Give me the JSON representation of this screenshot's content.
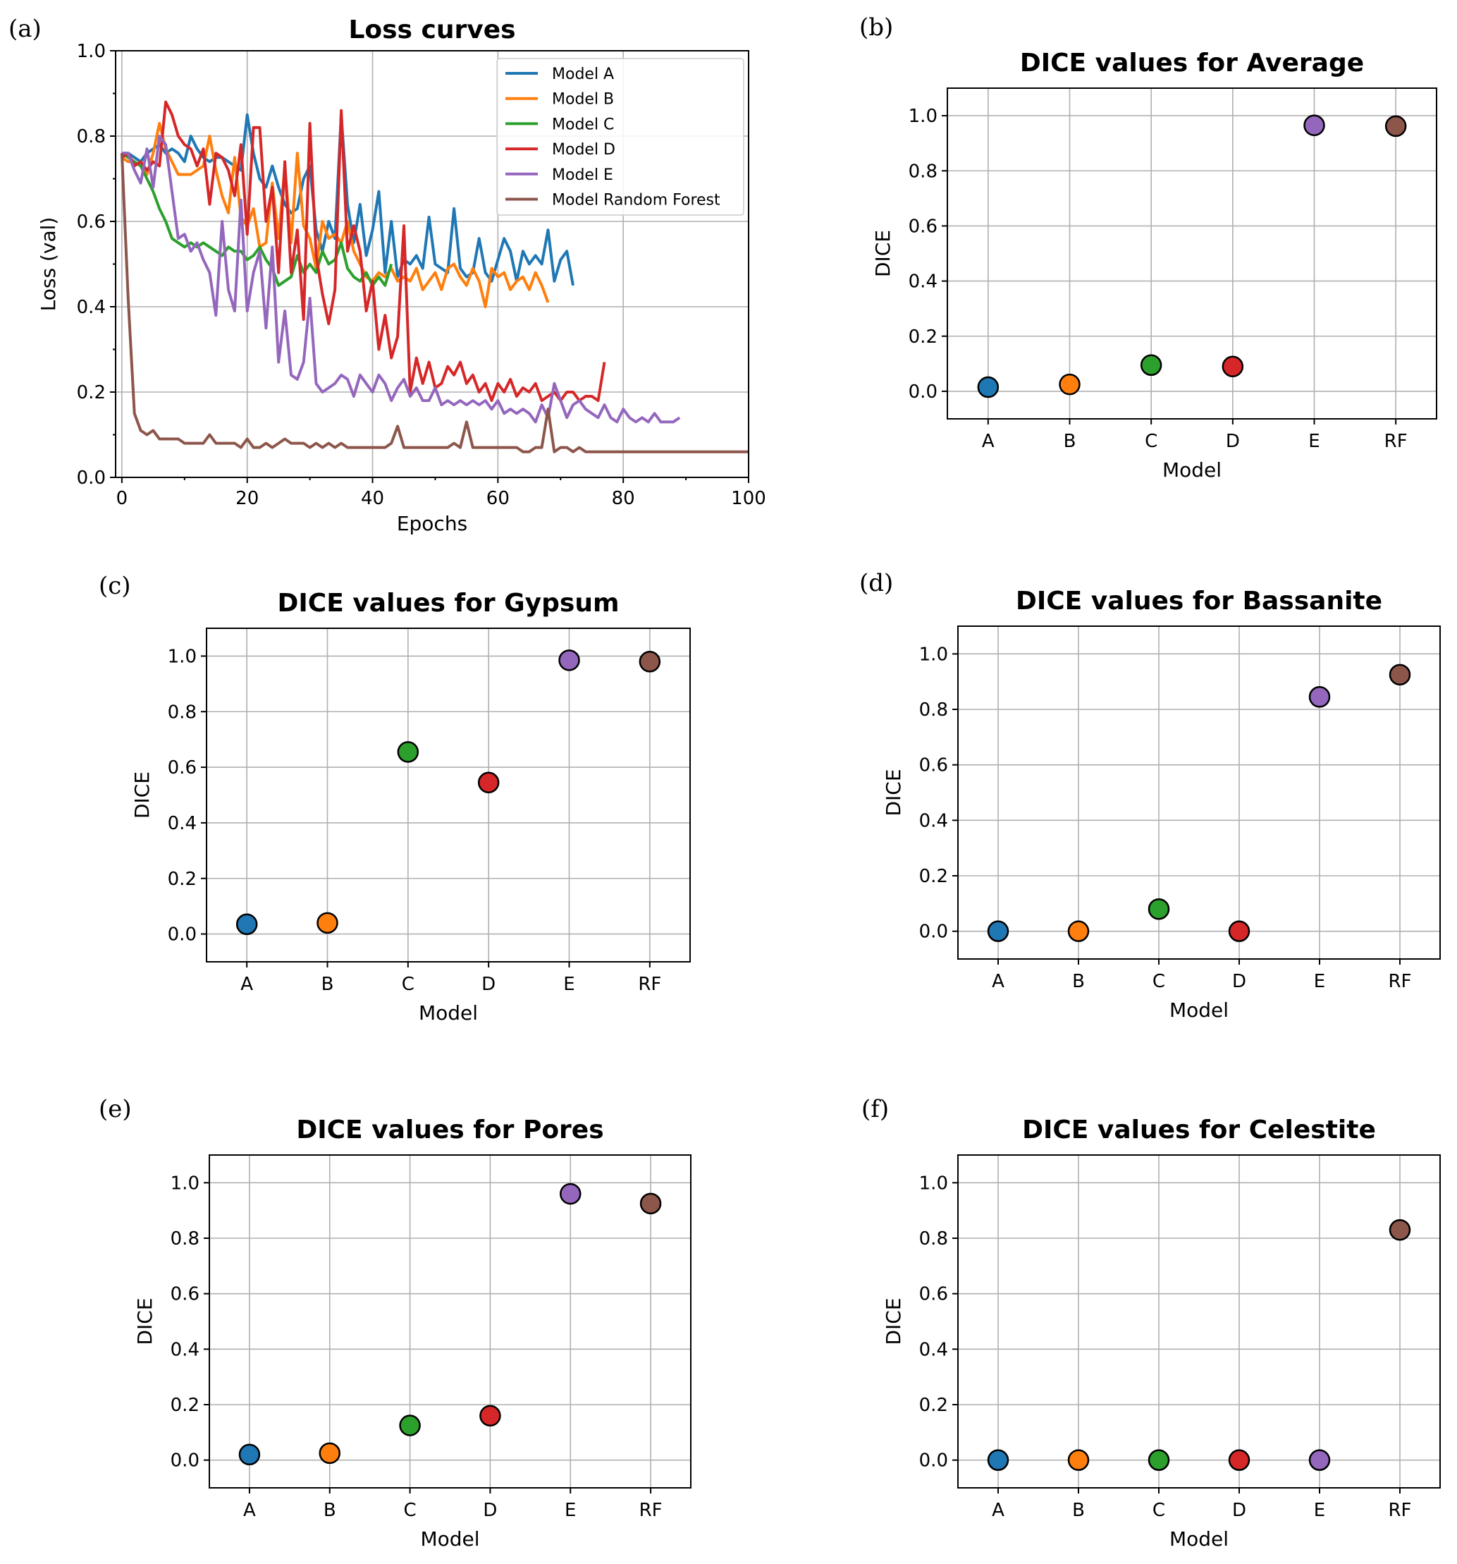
{
  "panel_labels": [
    "(a)",
    "(b)",
    "(c)",
    "(d)",
    "(e)",
    "(f)"
  ],
  "chart_data": [
    {
      "type": "line",
      "title": "Loss curves",
      "xlabel": "Epochs",
      "ylabel": "Loss (val)",
      "xlim": [
        -1,
        100
      ],
      "ylim": [
        0.0,
        1.0
      ],
      "xticks": [
        0,
        20,
        40,
        60,
        80,
        100
      ],
      "yticks": [
        0.0,
        0.2,
        0.4,
        0.6,
        0.8,
        1.0
      ],
      "grid": true,
      "legend_position": "top-right",
      "series": [
        {
          "name": "Model A",
          "color": "#1f77b4",
          "x_start": 0,
          "values": [
            0.76,
            0.76,
            0.75,
            0.74,
            0.76,
            0.77,
            0.78,
            0.76,
            0.77,
            0.76,
            0.74,
            0.8,
            0.77,
            0.75,
            0.74,
            0.75,
            0.75,
            0.74,
            0.73,
            0.72,
            0.85,
            0.76,
            0.7,
            0.68,
            0.73,
            0.68,
            0.64,
            0.62,
            0.63,
            0.7,
            0.73,
            0.58,
            0.53,
            0.6,
            0.56,
            0.85,
            0.64,
            0.55,
            0.64,
            0.52,
            0.58,
            0.67,
            0.48,
            0.6,
            0.47,
            0.51,
            0.5,
            0.52,
            0.49,
            0.61,
            0.5,
            0.49,
            0.48,
            0.63,
            0.49,
            0.47,
            0.48,
            0.56,
            0.48,
            0.46,
            0.51,
            0.56,
            0.53,
            0.46,
            0.53,
            0.5,
            0.52,
            0.5,
            0.58,
            0.46,
            0.51,
            0.53,
            0.45
          ]
        },
        {
          "name": "Model B",
          "color": "#ff7f0e",
          "x_start": 0,
          "values": [
            0.75,
            0.74,
            0.74,
            0.73,
            0.71,
            0.76,
            0.83,
            0.77,
            0.74,
            0.71,
            0.71,
            0.71,
            0.72,
            0.73,
            0.8,
            0.72,
            0.66,
            0.62,
            0.75,
            0.61,
            0.59,
            0.63,
            0.54,
            0.55,
            0.69,
            0.56,
            0.73,
            0.55,
            0.76,
            0.59,
            0.56,
            0.49,
            0.6,
            0.56,
            0.57,
            0.55,
            0.6,
            0.53,
            0.5,
            0.47,
            0.46,
            0.48,
            0.47,
            0.49,
            0.46,
            0.47,
            0.46,
            0.49,
            0.44,
            0.46,
            0.48,
            0.44,
            0.49,
            0.5,
            0.47,
            0.45,
            0.49,
            0.46,
            0.4,
            0.49,
            0.47,
            0.48,
            0.44,
            0.46,
            0.47,
            0.44,
            0.48,
            0.45,
            0.41
          ]
        },
        {
          "name": "Model C",
          "color": "#2ca02c",
          "x_start": 0,
          "values": [
            0.76,
            0.75,
            0.74,
            0.73,
            0.7,
            0.67,
            0.63,
            0.6,
            0.56,
            0.55,
            0.54,
            0.55,
            0.54,
            0.55,
            0.54,
            0.53,
            0.52,
            0.54,
            0.53,
            0.53,
            0.51,
            0.52,
            0.54,
            0.51,
            0.49,
            0.45,
            0.46,
            0.47,
            0.52,
            0.48,
            0.5,
            0.48,
            0.53,
            0.5,
            0.51,
            0.55,
            0.49,
            0.47,
            0.46,
            0.48,
            0.45,
            0.47,
            0.45,
            0.5
          ]
        },
        {
          "name": "Model D",
          "color": "#d62728",
          "x_start": 0,
          "values": [
            0.75,
            0.76,
            0.73,
            0.74,
            0.72,
            0.74,
            0.73,
            0.88,
            0.85,
            0.8,
            0.78,
            0.77,
            0.73,
            0.77,
            0.64,
            0.76,
            0.75,
            0.72,
            0.66,
            0.78,
            0.57,
            0.82,
            0.82,
            0.6,
            0.68,
            0.48,
            0.74,
            0.48,
            0.58,
            0.37,
            0.83,
            0.52,
            0.43,
            0.36,
            0.44,
            0.86,
            0.53,
            0.59,
            0.53,
            0.39,
            0.46,
            0.3,
            0.38,
            0.28,
            0.33,
            0.59,
            0.2,
            0.28,
            0.22,
            0.27,
            0.21,
            0.22,
            0.26,
            0.24,
            0.27,
            0.22,
            0.24,
            0.2,
            0.22,
            0.18,
            0.22,
            0.2,
            0.23,
            0.19,
            0.21,
            0.2,
            0.22,
            0.18,
            0.19,
            0.2,
            0.18,
            0.2,
            0.2,
            0.18,
            0.19,
            0.19,
            0.18,
            0.27
          ]
        },
        {
          "name": "Model E",
          "color": "#9467bd",
          "x_start": 0,
          "values": [
            0.76,
            0.76,
            0.72,
            0.69,
            0.77,
            0.68,
            0.8,
            0.78,
            0.67,
            0.56,
            0.57,
            0.53,
            0.55,
            0.51,
            0.48,
            0.38,
            0.6,
            0.44,
            0.39,
            0.65,
            0.39,
            0.48,
            0.53,
            0.35,
            0.54,
            0.27,
            0.39,
            0.24,
            0.23,
            0.27,
            0.42,
            0.22,
            0.2,
            0.21,
            0.22,
            0.24,
            0.23,
            0.19,
            0.24,
            0.22,
            0.2,
            0.24,
            0.22,
            0.18,
            0.21,
            0.23,
            0.19,
            0.21,
            0.18,
            0.18,
            0.21,
            0.17,
            0.18,
            0.17,
            0.18,
            0.17,
            0.18,
            0.17,
            0.18,
            0.16,
            0.18,
            0.15,
            0.16,
            0.15,
            0.16,
            0.15,
            0.13,
            0.17,
            0.14,
            0.22,
            0.18,
            0.14,
            0.17,
            0.18,
            0.16,
            0.15,
            0.14,
            0.17,
            0.14,
            0.13,
            0.16,
            0.14,
            0.13,
            0.14,
            0.13,
            0.15,
            0.13,
            0.13,
            0.13,
            0.14
          ]
        },
        {
          "name": "Model Random Forest",
          "color": "#8c564b",
          "x_start": 0,
          "values": [
            0.76,
            0.42,
            0.15,
            0.11,
            0.1,
            0.11,
            0.09,
            0.09,
            0.09,
            0.09,
            0.08,
            0.08,
            0.08,
            0.08,
            0.1,
            0.08,
            0.08,
            0.08,
            0.08,
            0.07,
            0.09,
            0.07,
            0.07,
            0.08,
            0.07,
            0.08,
            0.09,
            0.08,
            0.08,
            0.08,
            0.07,
            0.08,
            0.07,
            0.08,
            0.07,
            0.08,
            0.07,
            0.07,
            0.07,
            0.07,
            0.07,
            0.07,
            0.07,
            0.08,
            0.12,
            0.07,
            0.07,
            0.07,
            0.07,
            0.07,
            0.07,
            0.07,
            0.07,
            0.08,
            0.07,
            0.13,
            0.07,
            0.07,
            0.07,
            0.07,
            0.07,
            0.07,
            0.07,
            0.07,
            0.06,
            0.06,
            0.07,
            0.07,
            0.16,
            0.06,
            0.07,
            0.07,
            0.06,
            0.07,
            0.06,
            0.06,
            0.06,
            0.06,
            0.06,
            0.06,
            0.06,
            0.06,
            0.06,
            0.06,
            0.06,
            0.06,
            0.06,
            0.06,
            0.06,
            0.06,
            0.06,
            0.06,
            0.06,
            0.06,
            0.06,
            0.06,
            0.06,
            0.06,
            0.06,
            0.06,
            0.06
          ]
        }
      ]
    },
    {
      "type": "scatter",
      "title": "DICE values for Average",
      "xlabel": "Model",
      "ylabel": "DICE",
      "categories": [
        "A",
        "B",
        "C",
        "D",
        "E",
        "RF"
      ],
      "values": [
        0.015,
        0.025,
        0.095,
        0.09,
        0.965,
        0.962
      ],
      "ylim": [
        -0.1,
        1.1
      ],
      "yticks": [
        0.0,
        0.2,
        0.4,
        0.6,
        0.8,
        1.0
      ],
      "grid": true
    },
    {
      "type": "scatter",
      "title": "DICE values for Gypsum",
      "xlabel": "Model",
      "ylabel": "DICE",
      "categories": [
        "A",
        "B",
        "C",
        "D",
        "E",
        "RF"
      ],
      "values": [
        0.035,
        0.04,
        0.655,
        0.545,
        0.985,
        0.98
      ],
      "ylim": [
        -0.1,
        1.1
      ],
      "yticks": [
        0.0,
        0.2,
        0.4,
        0.6,
        0.8,
        1.0
      ],
      "grid": true
    },
    {
      "type": "scatter",
      "title": "DICE values for Bassanite",
      "xlabel": "Model",
      "ylabel": "DICE",
      "categories": [
        "A",
        "B",
        "C",
        "D",
        "E",
        "RF"
      ],
      "values": [
        0.0,
        0.0,
        0.08,
        0.0,
        0.845,
        0.925
      ],
      "ylim": [
        -0.1,
        1.1
      ],
      "yticks": [
        0.0,
        0.2,
        0.4,
        0.6,
        0.8,
        1.0
      ],
      "grid": true
    },
    {
      "type": "scatter",
      "title": "DICE values for Pores",
      "xlabel": "Model",
      "ylabel": "DICE",
      "categories": [
        "A",
        "B",
        "C",
        "D",
        "E",
        "RF"
      ],
      "values": [
        0.02,
        0.025,
        0.125,
        0.16,
        0.96,
        0.925
      ],
      "ylim": [
        -0.1,
        1.1
      ],
      "yticks": [
        0.0,
        0.2,
        0.4,
        0.6,
        0.8,
        1.0
      ],
      "grid": true
    },
    {
      "type": "scatter",
      "title": "DICE values for Celestite",
      "xlabel": "Model",
      "ylabel": "DICE",
      "categories": [
        "A",
        "B",
        "C",
        "D",
        "E",
        "RF"
      ],
      "values": [
        0.0,
        0.0,
        0.0,
        0.0,
        0.0,
        0.83
      ],
      "ylim": [
        -0.1,
        1.1
      ],
      "yticks": [
        0.0,
        0.2,
        0.4,
        0.6,
        0.8,
        1.0
      ],
      "grid": true
    }
  ],
  "colors": {
    "model_colors": [
      "#1f77b4",
      "#ff7f0e",
      "#2ca02c",
      "#d62728",
      "#9467bd",
      "#8c564b"
    ]
  }
}
